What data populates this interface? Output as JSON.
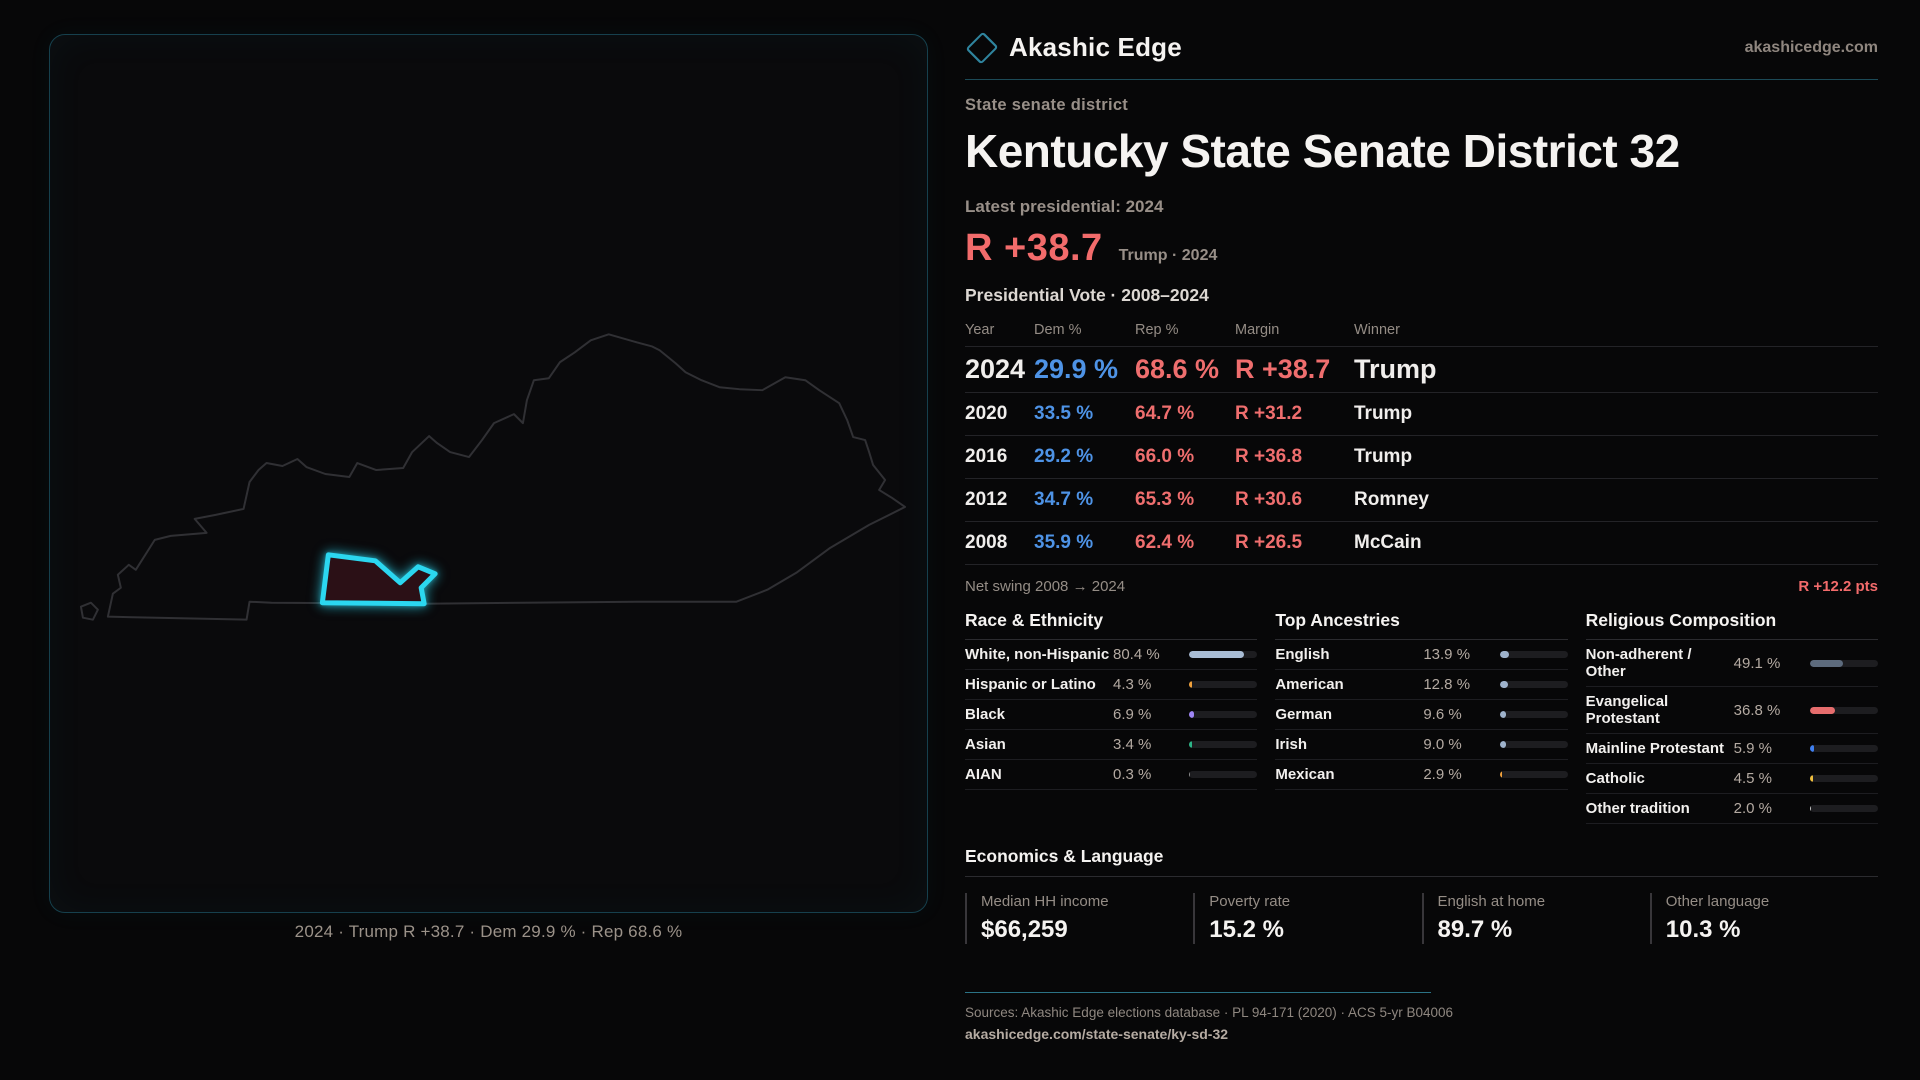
{
  "brand": {
    "name": "Akashic Edge",
    "domain": "akashicedge.com"
  },
  "page": {
    "kicker": "State senate district",
    "title": "Kentucky State Senate District 32",
    "latest_label": "Latest presidential: 2024",
    "headline_margin": "R +38.7",
    "headline_context": "Trump · 2024",
    "table_title": "Presidential Vote · 2008–2024"
  },
  "vote_table": {
    "columns": {
      "year": "Year",
      "dem": "Dem %",
      "rep": "Rep %",
      "margin": "Margin",
      "winner": "Winner"
    },
    "rows": [
      {
        "year": "2024",
        "dem": "29.9 %",
        "rep": "68.6 %",
        "margin": "R +38.7",
        "winner": "Trump",
        "highlight": true
      },
      {
        "year": "2020",
        "dem": "33.5 %",
        "rep": "64.7 %",
        "margin": "R +31.2",
        "winner": "Trump",
        "highlight": false
      },
      {
        "year": "2016",
        "dem": "29.2 %",
        "rep": "66.0 %",
        "margin": "R +36.8",
        "winner": "Trump",
        "highlight": false
      },
      {
        "year": "2012",
        "dem": "34.7 %",
        "rep": "65.3 %",
        "margin": "R +30.6",
        "winner": "Romney",
        "highlight": false
      },
      {
        "year": "2008",
        "dem": "35.9 %",
        "rep": "62.4 %",
        "margin": "R +26.5",
        "winner": "McCain",
        "highlight": false
      }
    ],
    "net_swing_label": "Net swing 2008 → 2024",
    "net_swing_value": "R +12.2 pts"
  },
  "demographics": {
    "race": {
      "title": "Race & Ethnicity",
      "rows": [
        {
          "label": "White, non-Hispanic",
          "value": "80.4 %",
          "pct": 80.4,
          "color": "#a9bdd5"
        },
        {
          "label": "Hispanic or Latino",
          "value": "4.3 %",
          "pct": 4.3,
          "color": "#f0a13c"
        },
        {
          "label": "Black",
          "value": "6.9 %",
          "pct": 6.9,
          "color": "#9f86f5"
        },
        {
          "label": "Asian",
          "value": "3.4 %",
          "pct": 3.4,
          "color": "#2db487"
        },
        {
          "label": "AIAN",
          "value": "0.3 %",
          "pct": 0.3,
          "color": "#8a8a8a"
        }
      ]
    },
    "ancestries": {
      "title": "Top Ancestries",
      "rows": [
        {
          "label": "English",
          "value": "13.9 %",
          "pct": 13.9,
          "color": "#9fb3cc"
        },
        {
          "label": "American",
          "value": "12.8 %",
          "pct": 12.8,
          "color": "#9fb3cc"
        },
        {
          "label": "German",
          "value": "9.6 %",
          "pct": 9.6,
          "color": "#9fb3cc"
        },
        {
          "label": "Irish",
          "value": "9.0 %",
          "pct": 9.0,
          "color": "#9fb3cc"
        },
        {
          "label": "Mexican",
          "value": "2.9 %",
          "pct": 2.9,
          "color": "#f0a13c"
        }
      ]
    },
    "religion": {
      "title": "Religious Composition",
      "rows": [
        {
          "label": "Non-adherent / Other",
          "value": "49.1 %",
          "pct": 49.1,
          "color": "#5d6b7d"
        },
        {
          "label": "Evangelical Protestant",
          "value": "36.8 %",
          "pct": 36.8,
          "color": "#e66d6d"
        },
        {
          "label": "Mainline Protestant",
          "value": "5.9 %",
          "pct": 5.9,
          "color": "#3f7ff0"
        },
        {
          "label": "Catholic",
          "value": "4.5 %",
          "pct": 4.5,
          "color": "#eebe3e"
        },
        {
          "label": "Other tradition",
          "value": "2.0 %",
          "pct": 2.0,
          "color": "#c8c8c8"
        }
      ]
    }
  },
  "economics": {
    "title": "Economics & Language",
    "stats": [
      {
        "label": "Median HH income",
        "value": "$66,259"
      },
      {
        "label": "Poverty rate",
        "value": "15.2 %"
      },
      {
        "label": "English at home",
        "value": "89.7 %"
      },
      {
        "label": "Other language",
        "value": "10.3 %"
      }
    ]
  },
  "map": {
    "caption": "2024 · Trump R +38.7 · Dem 29.9 % · Rep 68.6 %"
  },
  "footer": {
    "sources": "Sources: Akashic Edge elections database · PL 94-171 (2020) · ACS 5-yr B04006",
    "url": "akashicedge.com/state-senate/ky-sd-32"
  },
  "colors": {
    "accent_cyan": "#2bd7f0",
    "rep_red": "#f26b6b",
    "dem_blue": "#4e93e6",
    "teal_border": "#1c4a57"
  }
}
